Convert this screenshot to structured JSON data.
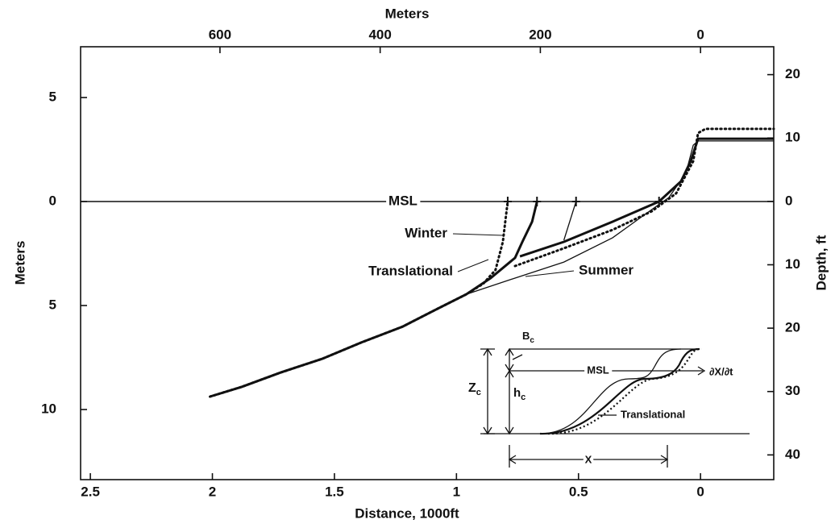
{
  "chart_data": {
    "type": "line",
    "xlabel": "Distance, 1000ft",
    "x2label": "Meters",
    "ylabel": "Meters",
    "y2label": "Depth, ft",
    "xlim": [
      2.54,
      -0.3
    ],
    "xticks": [
      2.5,
      2,
      1.5,
      1,
      0.5,
      0
    ],
    "x2lim": [
      774,
      -91.4
    ],
    "x2ticks": [
      600,
      400,
      200,
      0
    ],
    "ylim": [
      -13.37,
      7.44
    ],
    "yticks": [
      5,
      0,
      {
        "value": -5,
        "label": "5"
      },
      {
        "value": -10,
        "label": "10"
      }
    ],
    "y2lim": [
      -43.9,
      24.4
    ],
    "y2ticks": [
      20,
      10,
      0,
      {
        "value": -10,
        "label": "10"
      },
      {
        "value": -20,
        "label": "20"
      },
      {
        "value": -30,
        "label": "30"
      },
      {
        "value": -40,
        "label": "40"
      }
    ],
    "reference_line": {
      "label": "MSL",
      "value": 0
    },
    "series": [
      {
        "name": "Winter",
        "color": "#111",
        "style": "dotted",
        "x": [
          2.01,
          1.88,
          1.72,
          1.55,
          1.39,
          1.22,
          1.09,
          0.96,
          0.89,
          0.84,
          0.81,
          0.8,
          0.79,
          null,
          0.76,
          0.56,
          0.36,
          0.2,
          0.1,
          0.03,
          0.01,
          -0.02,
          -0.3
        ],
        "values": [
          -9.38,
          -8.91,
          -8.22,
          -7.56,
          -6.78,
          -6.01,
          -5.23,
          -4.46,
          -3.95,
          -3.29,
          -1.94,
          -0.97,
          0,
          null,
          -3.1,
          -2.25,
          -1.36,
          -0.47,
          0.39,
          1.94,
          3.29,
          3.49,
          3.49
        ]
      },
      {
        "name": "Translational",
        "color": "#111",
        "style": "thick",
        "x": [
          2.01,
          1.88,
          1.72,
          1.55,
          1.39,
          1.22,
          1.09,
          0.96,
          0.86,
          0.76,
          0.73,
          0.69,
          0.67,
          null,
          0.74,
          0.56,
          0.36,
          0.17,
          0.08,
          0.04,
          0.01,
          -0.3
        ],
        "values": [
          -9.38,
          -8.91,
          -8.22,
          -7.56,
          -6.78,
          -6.01,
          -5.23,
          -4.46,
          -3.68,
          -2.71,
          -1.94,
          -0.97,
          0,
          null,
          -2.64,
          -1.94,
          -0.97,
          0,
          0.97,
          1.94,
          3.02,
          3.02
        ]
      },
      {
        "name": "Summer",
        "color": "#111",
        "style": "thin",
        "x": [
          2.01,
          1.88,
          1.72,
          1.55,
          1.39,
          1.22,
          1.09,
          0.96,
          0.76,
          0.56,
          0.36,
          0.21,
          0.13,
          0.06,
          0.03,
          0.01,
          -0.3,
          null,
          0.56,
          0.51
        ],
        "values": [
          -9.38,
          -8.91,
          -8.22,
          -7.56,
          -6.78,
          -6.01,
          -5.23,
          -4.46,
          -3.68,
          -2.91,
          -1.74,
          -0.47,
          0.19,
          1.36,
          2.71,
          2.91,
          2.91,
          null,
          -1.86,
          0
        ]
      }
    ],
    "inset": {
      "crest": {
        "symbol": "B",
        "subscript": "c"
      },
      "closure": {
        "symbol": "Z",
        "subscript": "c"
      },
      "height": {
        "symbol": "h",
        "subscript": "c"
      },
      "msl": "MSL",
      "rate": "∂X/∂t",
      "profile": "Translational",
      "shift": "X"
    }
  }
}
